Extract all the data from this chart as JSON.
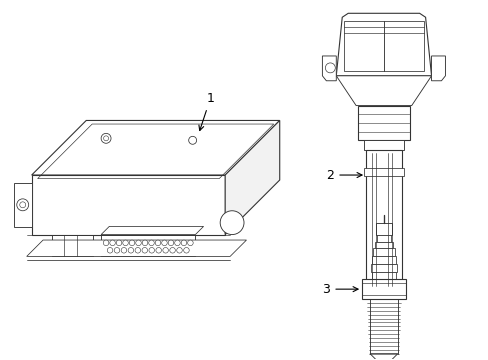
{
  "background_color": "#ffffff",
  "line_color": "#333333",
  "label_1": "1",
  "label_2": "2",
  "label_3": "3",
  "figsize": [
    4.89,
    3.6
  ],
  "dpi": 100
}
